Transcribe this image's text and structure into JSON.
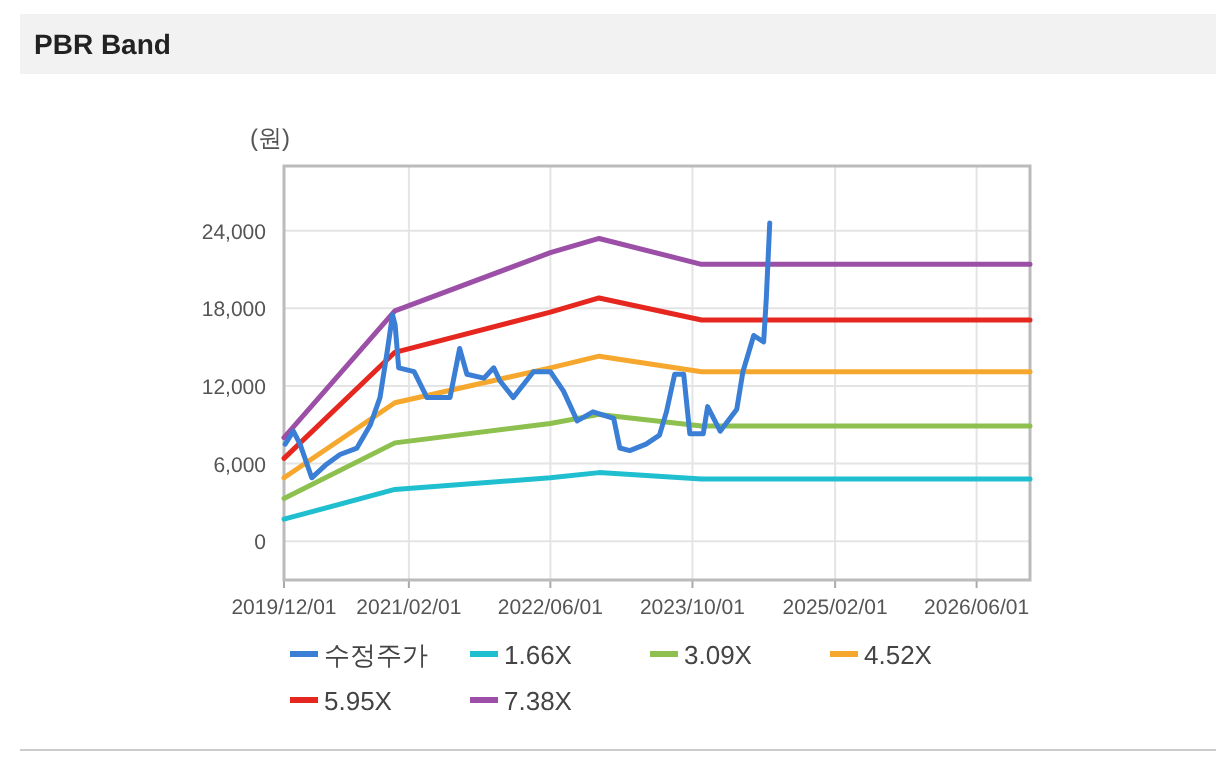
{
  "chart_data": {
    "type": "line",
    "title": "PBR Band",
    "ylabel": "(원)",
    "xlim": [
      "2019-12-01",
      "2026-12-01"
    ],
    "xticks": [
      {
        "value": "2019-12-01",
        "label": "2019/12/01"
      },
      {
        "value": "2021-02-01",
        "label": "2021/02/01"
      },
      {
        "value": "2022-06-01",
        "label": "2022/06/01"
      },
      {
        "value": "2023-10-01",
        "label": "2023/10/01"
      },
      {
        "value": "2025-02-01",
        "label": "2025/02/01"
      },
      {
        "value": "2026-06-01",
        "label": "2026/06/01"
      }
    ],
    "ylim": [
      -3000,
      29000
    ],
    "yticks": [
      0,
      {
        "value": 6000,
        "label": "6,000"
      },
      {
        "value": 12000,
        "label": "12,000"
      },
      {
        "value": 18000,
        "label": "18,000"
      },
      {
        "value": 24000,
        "label": "24,000"
      }
    ],
    "grid": true,
    "legend": "bottom",
    "series": [
      {
        "name": "수정주가",
        "color": "#3a7fd5",
        "x": [
          "2019-12-05",
          "2020-01-02",
          "2020-01-25",
          "2020-03-05",
          "2020-04-25",
          "2020-06-10",
          "2020-08-07",
          "2020-09-22",
          "2020-10-25",
          "2020-11-19",
          "2020-12-07",
          "2020-12-16",
          "2020-12-28",
          "2021-02-19",
          "2021-04-04",
          "2021-06-22",
          "2021-07-25",
          "2021-08-19",
          "2021-10-16",
          "2021-11-19",
          "2021-12-10",
          "2022-01-25",
          "2022-04-04",
          "2022-06-01",
          "2022-07-16",
          "2022-09-01",
          "2022-10-25",
          "2023-01-04",
          "2023-01-25",
          "2023-02-28",
          "2023-04-25",
          "2023-06-10",
          "2023-07-04",
          "2023-08-01",
          "2023-09-01",
          "2023-09-22",
          "2023-11-07",
          "2023-11-22",
          "2024-01-04",
          "2024-03-01",
          "2024-03-22",
          "2024-04-28",
          "2024-06-01",
          "2024-06-10",
          "2024-06-22"
        ],
        "values": [
          7500,
          8500,
          7500,
          4900,
          5950,
          6700,
          7200,
          9000,
          11100,
          14700,
          17500,
          16700,
          13400,
          13100,
          11100,
          11100,
          14900,
          12900,
          12600,
          13400,
          12400,
          11100,
          13100,
          13100,
          11600,
          9300,
          10000,
          9500,
          7200,
          7000,
          7500,
          8200,
          10000,
          12900,
          12900,
          8300,
          8300,
          10400,
          8500,
          10200,
          13100,
          15900,
          15400,
          18700,
          24600
        ]
      },
      {
        "name": "1.66X",
        "color": "#1fbfd0",
        "x": [
          "2019-12-01",
          "2020-12-15",
          "2022-06-01",
          "2022-11-15",
          "2023-11-01",
          "2026-12-01"
        ],
        "values": [
          1700,
          4000,
          4900,
          5300,
          4800,
          4800
        ]
      },
      {
        "name": "3.09X",
        "color": "#8dc04e",
        "x": [
          "2019-12-01",
          "2020-12-15",
          "2022-06-01",
          "2022-11-15",
          "2023-11-01",
          "2026-12-01"
        ],
        "values": [
          3300,
          7600,
          9100,
          9800,
          8900,
          8900
        ]
      },
      {
        "name": "4.52X",
        "color": "#f6a82e",
        "x": [
          "2019-12-01",
          "2020-12-15",
          "2022-06-01",
          "2022-11-15",
          "2023-11-01",
          "2026-12-01"
        ],
        "values": [
          4900,
          10700,
          13400,
          14300,
          13100,
          13100
        ]
      },
      {
        "name": "5.95X",
        "color": "#e5271f",
        "x": [
          "2019-12-01",
          "2020-12-15",
          "2022-06-01",
          "2022-11-15",
          "2023-11-01",
          "2026-12-01"
        ],
        "values": [
          6400,
          14600,
          17700,
          18800,
          17100,
          17100
        ]
      },
      {
        "name": "7.38X",
        "color": "#9b4fa6",
        "x": [
          "2019-12-01",
          "2020-12-15",
          "2022-06-01",
          "2022-11-15",
          "2023-11-01",
          "2026-12-01"
        ],
        "values": [
          8000,
          17800,
          22300,
          23400,
          21400,
          21400
        ]
      }
    ]
  }
}
